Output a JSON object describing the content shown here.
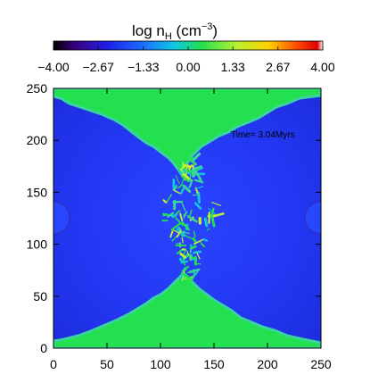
{
  "chart_data": {
    "type": "heatmap",
    "title": "log n",
    "title_subscript": "H",
    "title_unit_open": " (cm",
    "title_unit_exp": "−3",
    "title_unit_close": ")",
    "colorbar": {
      "min": -4.0,
      "max": 4.0,
      "ticks": [
        "−4.00",
        "−2.67",
        "−1.33",
        "0.00",
        "1.33",
        "2.67",
        "4.00"
      ],
      "tick_values": [
        -4.0,
        -2.67,
        -1.33,
        0.0,
        1.33,
        2.67,
        4.0
      ]
    },
    "x_axis": {
      "min": 0,
      "max": 250,
      "ticks": [
        0,
        50,
        100,
        150,
        200,
        250
      ]
    },
    "y_axis": {
      "min": 0,
      "max": 250,
      "ticks": [
        0,
        50,
        100,
        150,
        200,
        250
      ]
    },
    "xlabel": "",
    "ylabel": "",
    "annotation": "Time= 3.04Myrs",
    "colors": {
      "background_field": "#1f2fe6",
      "bright_field": "#2a48ff",
      "dense_gas": "#22e04e",
      "dense_edge": "#3bd3a0",
      "clump_core": "#c8f030"
    }
  }
}
